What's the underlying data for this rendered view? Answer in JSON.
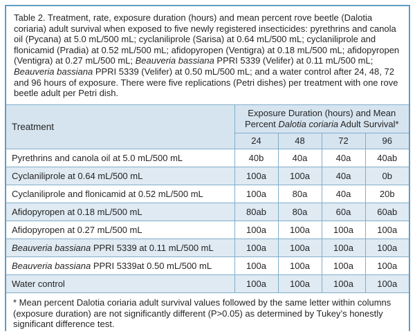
{
  "colors": {
    "border": "#7fadca",
    "outer_border": "#5f9cc2",
    "header_bg": "#d6e4ef",
    "stripe_bg": "#dfeaf3",
    "white_bg": "#ffffff",
    "text": "#242424"
  },
  "caption": {
    "segments": [
      {
        "t": "Table 2. Treatment, rate, exposure duration (hours) and mean percent rove beetle (Dalotia coriaria) adult survival when exposed to five newly registered insecticides: pyrethrins and canola oil (Pycana) at 5.0 mL/500 mL; cyclaniliprole (Sarisa) at 0.64 mL/500 mL; cyclaniliprole and flonicamid (Pradia) at 0.52 mL/500 mL; afidopyropen (Ventigra) at 0.18 mL/500 mL; afidopyropen (Ventigra) at 0.27 mL/500 mL; "
      },
      {
        "t": "Beauveria bassiana",
        "i": true
      },
      {
        "t": " PPRI 5339 (Velifer) at 0.11 mL/500 mL; "
      },
      {
        "t": "Beauveria bassiana",
        "i": true
      },
      {
        "t": " PPRI 5339 (Velifer) at 0.50 mL/500 mL; and a water control after 24, 48, 72 and 96 hours of exposure. There were five replications (Petri dishes) per treatment with one rove beetle adult per Petri dish."
      }
    ]
  },
  "header": {
    "treatment_label": "Treatment",
    "survival_label_segments": [
      {
        "t": "Exposure Duration (hours) and Mean Percent "
      },
      {
        "t": "Dalotia coriaria",
        "i": true
      },
      {
        "t": " Adult Survival*"
      }
    ],
    "hours": [
      "24",
      "48",
      "72",
      "96"
    ]
  },
  "rows": [
    {
      "name_segments": [
        {
          "t": "Pyrethrins and canola oil at 5.0 mL/500 mL"
        }
      ],
      "values": [
        "40b",
        "40a",
        "40a",
        "40ab"
      ]
    },
    {
      "name_segments": [
        {
          "t": "Cyclaniliprole at 0.64 mL/500 mL"
        }
      ],
      "values": [
        "100a",
        "100a",
        "40a",
        "0b"
      ]
    },
    {
      "name_segments": [
        {
          "t": "Cyclaniliprole and flonicamid at 0.52 mL/500 mL"
        }
      ],
      "values": [
        "100a",
        "80a",
        "40a",
        "20b"
      ]
    },
    {
      "name_segments": [
        {
          "t": "Afidopyropen at 0.18 mL/500 mL"
        }
      ],
      "values": [
        "80ab",
        "80a",
        "60a",
        "60ab"
      ]
    },
    {
      "name_segments": [
        {
          "t": "Afidopyropen at 0.27 mL/500 mL"
        }
      ],
      "values": [
        "100a",
        "100a",
        "100a",
        "100a"
      ]
    },
    {
      "name_segments": [
        {
          "t": "Beauveria bassiana",
          "i": true
        },
        {
          "t": " PPRI 5339 at 0.11 mL/500 mL"
        }
      ],
      "values": [
        "100a",
        "100a",
        "100a",
        "100a"
      ]
    },
    {
      "name_segments": [
        {
          "t": "Beauveria bassiana",
          "i": true
        },
        {
          "t": " PPRI 5339at 0.50 mL/500 mL"
        }
      ],
      "values": [
        "100a",
        "100a",
        "100a",
        "100a"
      ]
    },
    {
      "name_segments": [
        {
          "t": "Water control"
        }
      ],
      "values": [
        "100a",
        "100a",
        "100a",
        "100a"
      ]
    }
  ],
  "footnote": "* Mean percent Dalotia coriaria adult survival values followed by the same letter within columns (exposure duration) are not significantly different (P>0.05) as determined by Tukey’s honestly significant difference test.",
  "chart_data": {
    "type": "table",
    "title": "Table 2. Treatment, rate, exposure duration (hours) and mean percent rove beetle (Dalotia coriaria) adult survival",
    "columns": [
      "Treatment",
      "24",
      "48",
      "72",
      "96"
    ],
    "column_group_label": "Exposure Duration (hours) and Mean Percent Dalotia coriaria Adult Survival*",
    "rows": [
      [
        "Pyrethrins and canola oil at 5.0 mL/500 mL",
        "40b",
        "40a",
        "40a",
        "40ab"
      ],
      [
        "Cyclaniliprole at 0.64 mL/500 mL",
        "100a",
        "100a",
        "40a",
        "0b"
      ],
      [
        "Cyclaniliprole and flonicamid at 0.52 mL/500 mL",
        "100a",
        "80a",
        "40a",
        "20b"
      ],
      [
        "Afidopyropen at 0.18 mL/500 mL",
        "80ab",
        "80a",
        "60a",
        "60ab"
      ],
      [
        "Afidopyropen at 0.27 mL/500 mL",
        "100a",
        "100a",
        "100a",
        "100a"
      ],
      [
        "Beauveria bassiana PPRI 5339 at 0.11 mL/500 mL",
        "100a",
        "100a",
        "100a",
        "100a"
      ],
      [
        "Beauveria bassiana PPRI 5339at 0.50 mL/500 mL",
        "100a",
        "100a",
        "100a",
        "100a"
      ],
      [
        "Water control",
        "100a",
        "100a",
        "100a",
        "100a"
      ]
    ]
  }
}
